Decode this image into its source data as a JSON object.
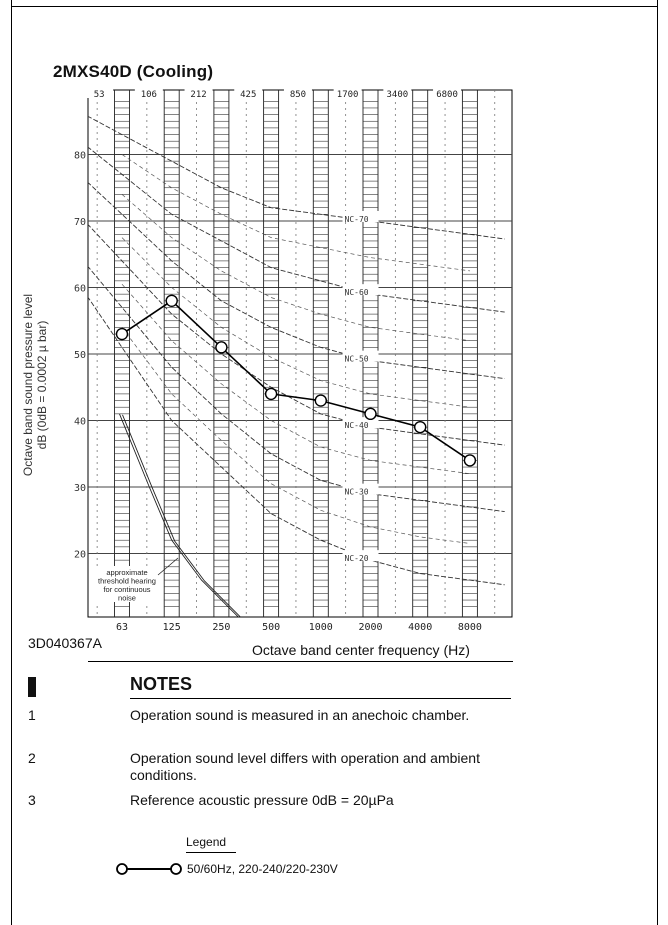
{
  "title": "2MXS40D  (Cooling)",
  "drawing_no": "3D040367A",
  "notes": {
    "title": "NOTES",
    "items": [
      {
        "num": "1",
        "text": "Operation sound is measured in an anechoic chamber."
      },
      {
        "num": "2",
        "text": "Operation sound level differs with operation and ambient conditions."
      },
      {
        "num": "3",
        "text": "Reference acoustic pressure 0dB = 20µPa"
      }
    ]
  },
  "legend": {
    "title": "Legend",
    "entries": [
      {
        "label": "50/60Hz, 220-240/220-230V"
      }
    ]
  },
  "chart_data": {
    "type": "line",
    "title": "2MXS40D  (Cooling)",
    "xlabel": "Octave band center frequency (Hz)",
    "ylabel_line1": "Octave band sound pressure level",
    "ylabel_line2": "dB (0dB = 0.0002  µ bar)",
    "x_scale": "log (octave bands)",
    "x_ticks": [
      "63",
      "125",
      "250",
      "500",
      "1000",
      "2000",
      "4000",
      "8000"
    ],
    "x_top_ticks": [
      "53",
      "106",
      "212",
      "425",
      "850",
      "1700",
      "3400",
      "6800"
    ],
    "y_ticks": [
      20,
      30,
      40,
      50,
      60,
      70,
      80
    ],
    "ylim": [
      12,
      88
    ],
    "grid": true,
    "nc_curves": [
      {
        "label": "NC-70",
        "values": [
          83,
          79,
          75,
          72,
          71,
          70,
          69,
          68
        ]
      },
      {
        "label": "NC-60",
        "values": [
          77,
          71,
          67,
          63,
          61,
          59,
          58,
          57
        ]
      },
      {
        "label": "NC-50",
        "values": [
          71,
          64,
          58,
          54,
          51,
          49,
          48,
          47
        ]
      },
      {
        "label": "NC-40",
        "values": [
          64,
          56,
          50,
          45,
          41,
          39,
          38,
          37
        ]
      },
      {
        "label": "NC-30",
        "values": [
          57,
          48,
          41,
          35,
          31,
          29,
          28,
          27
        ]
      },
      {
        "label": "NC-20",
        "values": [
          51,
          40,
          33,
          26,
          22,
          19,
          17,
          16
        ]
      }
    ],
    "threshold_label": "approximate threshold hearing for continuous noise",
    "series": [
      {
        "name": "50/60Hz, 220-240/220-230V",
        "values": [
          53,
          58,
          51,
          44,
          43,
          41,
          39,
          34
        ],
        "color": "#000000"
      }
    ]
  }
}
